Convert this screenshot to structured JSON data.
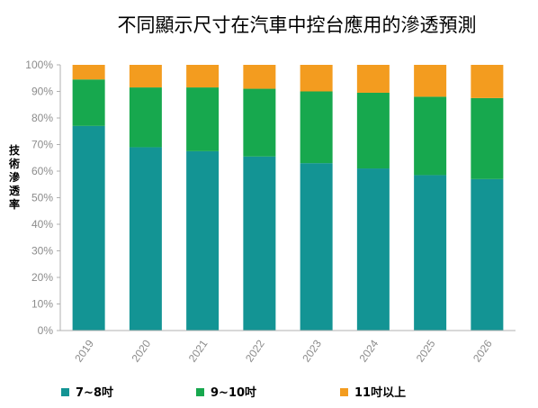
{
  "chart_data": {
    "type": "bar",
    "stacked": true,
    "title": "不同顯示尺寸在汽車中控台應用的滲透預測",
    "ylabel": "技術滲透率",
    "xlabel": "",
    "categories": [
      "2019",
      "2020",
      "2021",
      "2022",
      "2023",
      "2024",
      "2025",
      "2026"
    ],
    "ylim": [
      0,
      100
    ],
    "yticks": [
      "0%",
      "10%",
      "20%",
      "30%",
      "40%",
      "50%",
      "60%",
      "70%",
      "80%",
      "90%",
      "100%"
    ],
    "grid": false,
    "legend_position": "bottom",
    "series": [
      {
        "name": "7~8吋",
        "color": "#139494",
        "values": [
          77,
          69,
          67.5,
          65.5,
          63,
          61,
          58.5,
          57
        ]
      },
      {
        "name": "9~10吋",
        "color": "#17a84e",
        "values": [
          17.5,
          22.5,
          24,
          25.5,
          27,
          28.5,
          29.5,
          30.5
        ]
      },
      {
        "name": "11吋以上",
        "color": "#f39c1f",
        "values": [
          5.5,
          8.5,
          8.5,
          9,
          10,
          10.5,
          12,
          12.5
        ]
      }
    ]
  }
}
